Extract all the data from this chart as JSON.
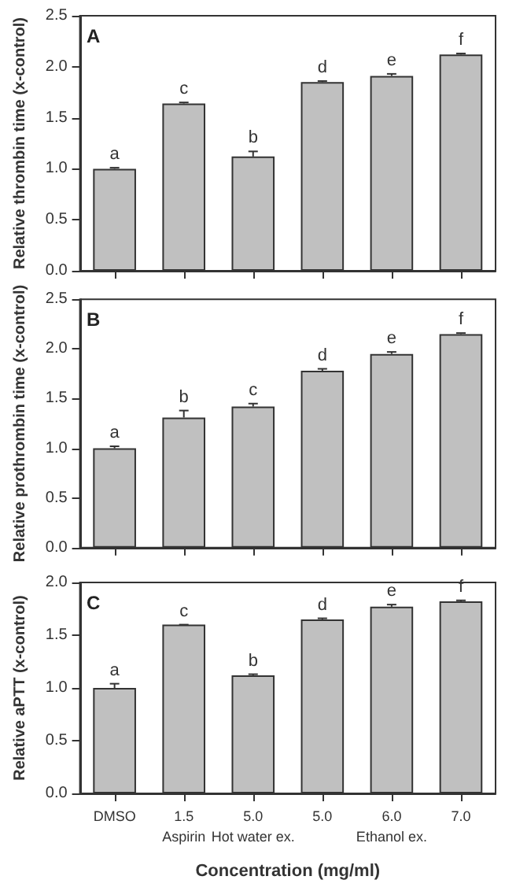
{
  "chart_data": [
    {
      "type": "bar",
      "title": "A",
      "ylabel": "Relative thrombin time (x-control)",
      "categories": [
        null,
        null,
        null,
        null,
        null,
        null
      ],
      "tick_labels": "y",
      "color": "#c0c0c0",
      "values": [
        1.0,
        1.64,
        1.12,
        1.85,
        1.91,
        2.12
      ],
      "errors": [
        0.01,
        0.01,
        0.05,
        0.01,
        0.02,
        0.01
      ],
      "ylim": [
        0,
        2.5
      ],
      "yticks": [
        {
          "value": 0,
          "label": "0.0"
        },
        {
          "value": 0.5,
          "label": "0.5"
        },
        {
          "value": 1,
          "label": "1.0"
        },
        {
          "value": 1.5,
          "label": "1.5"
        },
        {
          "value": 2,
          "label": "2.0"
        },
        {
          "value": 2.5,
          "label": "2.5"
        }
      ],
      "grid": false,
      "annotations": [
        "a",
        "c",
        "b",
        "d",
        "e",
        "f"
      ]
    },
    {
      "type": "bar",
      "title": "B",
      "ylabel": "Relative prothrombin time (x-control)",
      "categories": [
        null,
        null,
        null,
        null,
        null,
        null
      ],
      "tick_labels": "y",
      "color": "#c0c0c0",
      "values": [
        1.0,
        1.31,
        1.42,
        1.78,
        1.95,
        2.15
      ],
      "errors": [
        0.02,
        0.07,
        0.03,
        0.02,
        0.02,
        0.01
      ],
      "ylim": [
        0,
        2.5
      ],
      "yticks": [
        {
          "value": 0,
          "label": "0.0"
        },
        {
          "value": 0.5,
          "label": "0.5"
        },
        {
          "value": 1,
          "label": "1.0"
        },
        {
          "value": 1.5,
          "label": "1.5"
        },
        {
          "value": 2,
          "label": "2.0"
        },
        {
          "value": 2.5,
          "label": "2.5"
        }
      ],
      "grid": false,
      "annotations": [
        "a",
        "b",
        "c",
        "d",
        "e",
        "f"
      ]
    },
    {
      "type": "bar",
      "title": "C",
      "ylabel": "Relative aPTT (x-control)",
      "xlabel": "Concentration (mg/ml)",
      "categories": [
        "DMSO",
        "1.5\nAspirin",
        "5.0\nHot water ex.",
        "5.0",
        "6.0\nEthanol ex.",
        "7.0"
      ],
      "color": "#c0c0c0",
      "values": [
        1.0,
        1.6,
        1.12,
        1.65,
        1.77,
        1.82
      ],
      "errors": [
        0.04,
        0.0,
        0.01,
        0.01,
        0.02,
        0.01
      ],
      "ylim": [
        0,
        2.0
      ],
      "yticks": [
        {
          "value": 0,
          "label": "0.0"
        },
        {
          "value": 0.5,
          "label": "0.5"
        },
        {
          "value": 1,
          "label": "1.0"
        },
        {
          "value": 1.5,
          "label": "1.5"
        },
        {
          "value": 2,
          "label": "2.0"
        }
      ],
      "grid": false,
      "annotations": [
        "a",
        "c",
        "b",
        "d",
        "e",
        "f"
      ]
    }
  ]
}
